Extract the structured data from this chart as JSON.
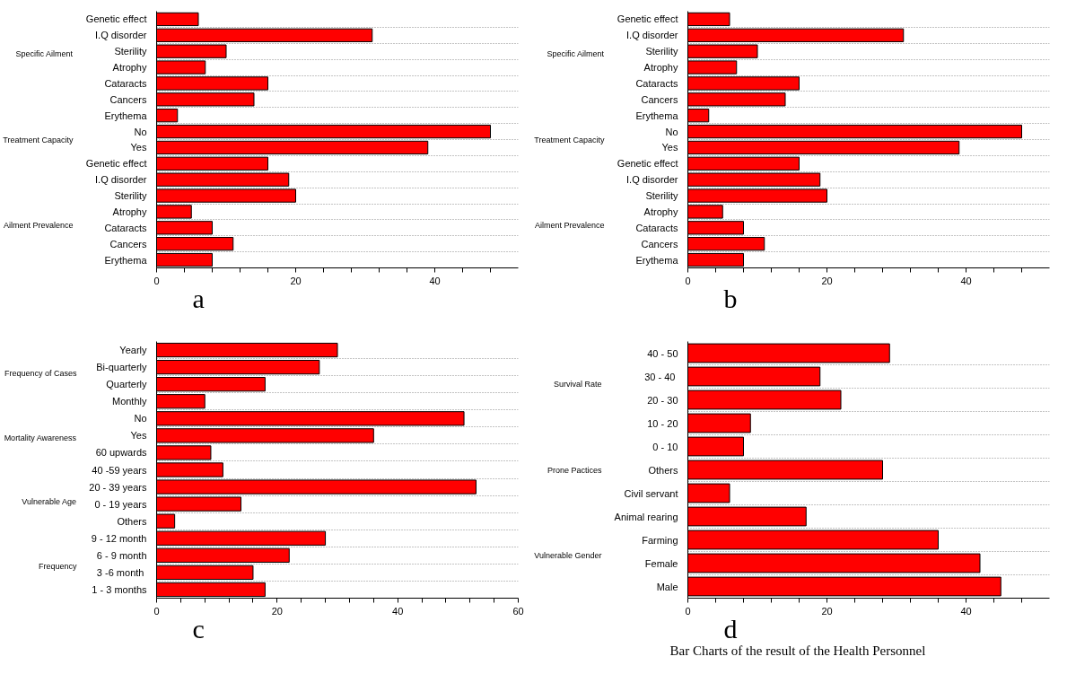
{
  "chart_data": [
    {
      "type": "bar",
      "orientation": "horizontal",
      "color": "#ff0000",
      "grid": "y",
      "categories": [
        "Genetic effect",
        "I.Q disorder",
        "Sterility",
        "Atrophy",
        "Cataracts",
        "Cancers",
        "Erythema",
        "No",
        "Yes",
        "Genetic effect",
        "I.Q disorder",
        "Sterility",
        "Atrophy",
        "Cataracts",
        "Cancers",
        "Erythema"
      ],
      "values": [
        6,
        31,
        10,
        7,
        16,
        14,
        3,
        48,
        39,
        16,
        19,
        20,
        5,
        8,
        11,
        8
      ],
      "xlim": [
        0,
        52
      ],
      "xticks": [
        0,
        {
          "value": 4,
          "label": null
        },
        {
          "value": 8,
          "label": null
        },
        {
          "value": 12,
          "label": null
        },
        {
          "value": 16,
          "label": null
        },
        20,
        {
          "value": 24,
          "label": null
        },
        {
          "value": 28,
          "label": null
        },
        {
          "value": 32,
          "label": null
        },
        {
          "value": 36,
          "label": null
        },
        40,
        {
          "value": 44,
          "label": null
        },
        {
          "value": 48,
          "label": null
        }
      ],
      "annotations": [
        "a",
        "Specific Ailment",
        "Treatment Capacity",
        "Ailment Prevalence"
      ]
    },
    {
      "type": "bar",
      "orientation": "horizontal",
      "color": "#ff0000",
      "grid": "y",
      "categories": [
        "Genetic effect",
        "I.Q disorder",
        "Sterility",
        "Atrophy",
        "Cataracts",
        "Cancers",
        "Erythema",
        "No",
        "Yes",
        "Genetic effect",
        "I.Q disorder",
        "Sterility",
        "Atrophy",
        "Cataracts",
        "Cancers",
        "Erythema"
      ],
      "values": [
        6,
        31,
        10,
        7,
        16,
        14,
        3,
        48,
        39,
        16,
        19,
        20,
        5,
        8,
        11,
        8
      ],
      "xlim": [
        0,
        52
      ],
      "xticks": [
        0,
        {
          "value": 4,
          "label": null
        },
        {
          "value": 8,
          "label": null
        },
        {
          "value": 12,
          "label": null
        },
        {
          "value": 16,
          "label": null
        },
        20,
        {
          "value": 24,
          "label": null
        },
        {
          "value": 28,
          "label": null
        },
        {
          "value": 32,
          "label": null
        },
        {
          "value": 36,
          "label": null
        },
        40,
        {
          "value": 44,
          "label": null
        },
        {
          "value": 48,
          "label": null
        }
      ],
      "annotations": [
        "b",
        "Specific Ailment",
        "Treatment Capacity",
        "Ailment Prevalence"
      ]
    },
    {
      "type": "bar",
      "orientation": "horizontal",
      "color": "#ff0000",
      "grid": "y",
      "categories": [
        "Yearly",
        "Bi-quarterly",
        "Quarterly",
        "Monthly",
        "No",
        "Yes",
        "60 upwards",
        "40 -59 years",
        "20 - 39 years",
        "0 - 19 years",
        "Others",
        "9 - 12 month",
        "6 - 9 month",
        "3  -6 month",
        "1 - 3 months"
      ],
      "values": [
        30,
        27,
        18,
        8,
        51,
        36,
        9,
        11,
        53,
        14,
        3,
        28,
        22,
        16,
        18
      ],
      "xlim": [
        0,
        60
      ],
      "xticks": [
        0,
        {
          "value": 4,
          "label": null
        },
        {
          "value": 8,
          "label": null
        },
        {
          "value": 12,
          "label": null
        },
        {
          "value": 16,
          "label": null
        },
        20,
        {
          "value": 24,
          "label": null
        },
        {
          "value": 28,
          "label": null
        },
        {
          "value": 32,
          "label": null
        },
        {
          "value": 36,
          "label": null
        },
        40,
        {
          "value": 44,
          "label": null
        },
        {
          "value": 48,
          "label": null
        },
        {
          "value": 52,
          "label": null
        },
        {
          "value": 56,
          "label": null
        },
        60
      ],
      "annotations": [
        "c",
        "Frequency of Cases",
        "Mortality Awareness",
        "Vulnerable Age",
        "Frequency"
      ]
    },
    {
      "type": "bar",
      "orientation": "horizontal",
      "color": "#ff0000",
      "grid": "y",
      "categories": [
        "40 - 50",
        "30 -  40",
        "20 - 30",
        "10 - 20",
        "0 - 10",
        "Others",
        "Civil servant",
        "Animal rearing",
        "Farming",
        "Female",
        "Male"
      ],
      "values": [
        29,
        19,
        22,
        9,
        8,
        28,
        6,
        17,
        36,
        42,
        45
      ],
      "xlim": [
        0,
        52
      ],
      "xticks": [
        0,
        {
          "value": 4,
          "label": null
        },
        {
          "value": 8,
          "label": null
        },
        {
          "value": 12,
          "label": null
        },
        {
          "value": 16,
          "label": null
        },
        20,
        {
          "value": 24,
          "label": null
        },
        {
          "value": 28,
          "label": null
        },
        {
          "value": 32,
          "label": null
        },
        {
          "value": 36,
          "label": null
        },
        40,
        {
          "value": 44,
          "label": null
        },
        {
          "value": 48,
          "label": null
        }
      ],
      "annotations": [
        "d",
        "Survival Rate",
        "Prone Pactices",
        "Vulnerable Gender",
        "Bar Charts of the result of the Health Personnel"
      ]
    }
  ]
}
